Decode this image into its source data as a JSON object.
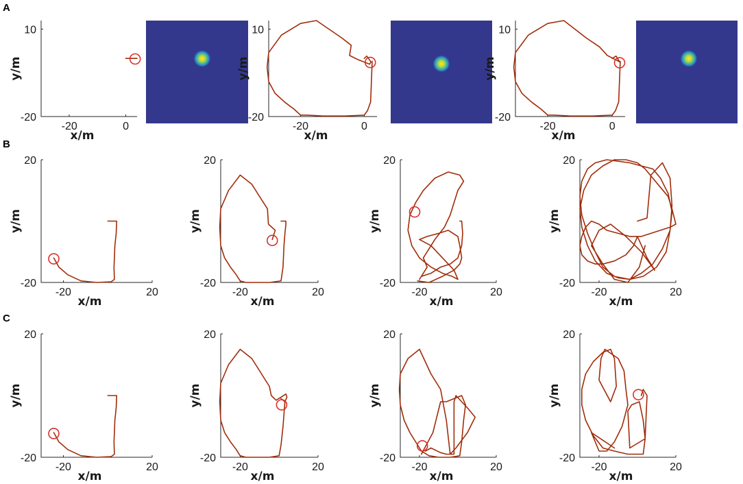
{
  "panel_labels": [
    "A",
    "B",
    "C"
  ],
  "chart_data": [
    {
      "id": "A1",
      "row": "A",
      "type": "line",
      "xlabel": "x/m",
      "ylabel": "y/m",
      "xlim": [
        -30,
        4
      ],
      "ylim": [
        -20,
        13
      ],
      "xticks": [
        -20,
        0
      ],
      "yticks": [
        10,
        -20
      ],
      "x_tick_labels": [
        "-20",
        "0"
      ],
      "y_tick_labels": [
        "10",
        "-20"
      ],
      "series": [
        {
          "x": [
            0,
            4
          ],
          "y": [
            0,
            0
          ]
        }
      ],
      "marker": {
        "x": 3.3,
        "y": -0.2
      }
    },
    {
      "id": "A1h",
      "row": "A",
      "type": "heatmap",
      "background": "#34388c",
      "blob": {
        "cx": 0.55,
        "cy": 0.37
      },
      "colormap": [
        "#34388c",
        "#2a7fcf",
        "#1fbcaa",
        "#8fd14c",
        "#ffe426"
      ]
    },
    {
      "id": "A2",
      "row": "A",
      "type": "line",
      "xlabel": "x/m",
      "ylabel": "y/m",
      "xlim": [
        -30,
        4
      ],
      "ylim": [
        -20,
        13
      ],
      "xticks": [
        -20,
        0
      ],
      "yticks": [
        10,
        -20
      ],
      "x_tick_labels": [
        "-20",
        "0"
      ],
      "y_tick_labels": [
        "10",
        "-20"
      ],
      "series": [
        {
          "x": [
            0,
            0.8,
            2.1,
            1.7,
            -1.8,
            -4.6,
            -4.1,
            -7,
            -15,
            -20,
            -26,
            -30,
            -30.5,
            -30,
            -28,
            -25,
            -22,
            -20,
            -18,
            -13,
            -6,
            0,
            1,
            2,
            2.5
          ],
          "y": [
            0,
            0.8,
            -1.2,
            -2,
            -0.5,
            1,
            4.5,
            7,
            13,
            12,
            8,
            2,
            -3,
            -8,
            -12,
            -15,
            -17.5,
            -19.5,
            -19.5,
            -19.8,
            -19.8,
            -19.5,
            -18,
            -15,
            -1
          ]
        }
      ],
      "marker": {
        "x": 1.9,
        "y": -1.4
      }
    },
    {
      "id": "A2h",
      "row": "A",
      "type": "heatmap",
      "background": "#34388c",
      "blob": {
        "cx": 0.5,
        "cy": 0.42
      },
      "colormap": [
        "#34388c",
        "#2a7fcf",
        "#1fbcaa",
        "#8fd14c",
        "#ffe426"
      ]
    },
    {
      "id": "A3",
      "row": "A",
      "type": "line",
      "xlabel": "x/m",
      "ylabel": "y/m",
      "xlim": [
        -30,
        4
      ],
      "ylim": [
        -20,
        13
      ],
      "xticks": [
        -20,
        0
      ],
      "yticks": [
        10,
        -20
      ],
      "x_tick_labels": [
        "-20",
        "0"
      ],
      "y_tick_labels": [
        "10",
        "-20"
      ],
      "series": [
        {
          "x": [
            0,
            1.2,
            2.3,
            -1.5,
            -4,
            -8,
            -15,
            -20,
            -26,
            -30,
            -30.5,
            -30,
            -28,
            -25,
            -22,
            -20,
            -18,
            -13,
            -6,
            0,
            1,
            2,
            2.5
          ],
          "y": [
            0,
            0.8,
            -1.2,
            1,
            4,
            7,
            13,
            12,
            8,
            2,
            -3,
            -8,
            -12,
            -15,
            -17.5,
            -19.5,
            -19.5,
            -19.8,
            -19.8,
            -19.5,
            -18,
            -15,
            -1
          ]
        }
      ],
      "marker": {
        "x": 2.3,
        "y": -1.5
      }
    },
    {
      "id": "A3h",
      "row": "A",
      "type": "heatmap",
      "background": "#34388c",
      "blob": {
        "cx": 0.52,
        "cy": 0.37
      },
      "colormap": [
        "#34388c",
        "#2a7fcf",
        "#1fbcaa",
        "#8fd14c",
        "#ffe426"
      ]
    },
    {
      "id": "B1",
      "row": "B",
      "type": "line",
      "xlabel": "x/m",
      "ylabel": "y/m",
      "xlim": [
        -30,
        20
      ],
      "ylim": [
        -20,
        20
      ],
      "xticks": [
        -20,
        20
      ],
      "yticks": [
        20,
        -20
      ],
      "x_tick_labels": [
        "-20",
        "20"
      ],
      "y_tick_labels": [
        "20",
        "-20"
      ],
      "series": [
        {
          "x": [
            0,
            4,
            3.8,
            3.2,
            3,
            2.8,
            3,
            1.5,
            -5,
            -12,
            -18,
            -22,
            -24.3
          ],
          "y": [
            0,
            0,
            -4,
            -8,
            -12,
            -15,
            -19,
            -19.8,
            -20,
            -19.5,
            -17.5,
            -15,
            -12
          ]
        }
      ],
      "marker": {
        "x": -24.3,
        "y": -12.3
      }
    },
    {
      "id": "B2",
      "row": "B",
      "type": "line",
      "xlabel": "x/m",
      "ylabel": "y/m",
      "xlim": [
        -30,
        20
      ],
      "ylim": [
        -20,
        20
      ],
      "xticks": [
        -20,
        20
      ],
      "yticks": [
        20,
        -20
      ],
      "x_tick_labels": [
        "-20",
        "20"
      ],
      "y_tick_labels": [
        "20",
        "-20"
      ],
      "series": [
        {
          "x": [
            -3.5,
            -2,
            -5.5,
            -6,
            -9,
            -14,
            -20,
            -26,
            -30,
            -30.5,
            -30,
            -28,
            -25,
            -22,
            -20,
            -17,
            -12,
            -5,
            1,
            2,
            2.5,
            3,
            3.5,
            3.5,
            1
          ],
          "y": [
            -6,
            -3,
            -1,
            4,
            7,
            12,
            15,
            10,
            4,
            -2,
            -8,
            -12,
            -15,
            -17.5,
            -19.5,
            -20,
            -20,
            -20,
            -19.5,
            -15,
            -8,
            -4,
            -1,
            0,
            0
          ]
        }
      ],
      "marker": {
        "x": -3.5,
        "y": -6.3
      }
    },
    {
      "id": "B3",
      "row": "B",
      "type": "line",
      "xlabel": "x/m",
      "ylabel": "y/m",
      "xlim": [
        -30,
        20
      ],
      "ylim": [
        -20,
        20
      ],
      "xticks": [
        -20,
        20
      ],
      "yticks": [
        20,
        -20
      ],
      "x_tick_labels": [
        "-20",
        "20"
      ],
      "y_tick_labels": [
        "20",
        "-20"
      ],
      "series": [
        {
          "x": [
            1,
            2,
            2.5,
            2,
            0,
            -4,
            -9,
            -14,
            -19,
            -20,
            -19,
            -16,
            -18,
            -12,
            -7,
            -4,
            -2,
            0,
            3,
            1,
            -5,
            -12,
            -18,
            -22,
            -25,
            -26,
            -24,
            -20,
            -14,
            -8,
            -3,
            0,
            -2,
            -8,
            -14,
            -20,
            -16,
            -10,
            -5,
            0,
            1,
            1.5,
            2,
            1,
            -2,
            -8,
            -15,
            -21
          ],
          "y": [
            0,
            0,
            -4,
            -8,
            -12,
            -14,
            -15,
            -17,
            -18,
            -19,
            -18,
            -15,
            -12,
            -6,
            -2,
            2,
            6,
            10,
            13,
            15,
            16,
            14,
            10,
            6,
            2,
            -3,
            -8,
            -12,
            -15,
            -17,
            -18,
            -19,
            -16,
            -12,
            -8,
            -6,
            -5,
            -4,
            -3,
            -5,
            -8,
            -10,
            -12,
            -14,
            -16,
            -18,
            -20,
            -19.5
          ]
        }
      ],
      "marker": {
        "x": -22.5,
        "y": 3
      }
    },
    {
      "id": "B4",
      "row": "B",
      "type": "line",
      "xlabel": "x/m",
      "ylabel": "y/m",
      "xlim": [
        -30,
        20
      ],
      "ylim": [
        -20,
        20
      ],
      "xticks": [
        -20,
        20
      ],
      "yticks": [
        20,
        -20
      ],
      "x_tick_labels": [
        "-20",
        "20"
      ],
      "y_tick_labels": [
        "20",
        "-20"
      ],
      "series": [
        {
          "x": [
            0,
            5,
            7,
            13,
            17,
            18,
            17,
            15,
            10,
            3,
            -4,
            -12,
            -18,
            -22,
            -26,
            -29,
            -30,
            -29,
            -26,
            -22,
            -16,
            -10,
            -4,
            2,
            8,
            12,
            16,
            18,
            17,
            13,
            8,
            2,
            -4,
            -10,
            -16,
            -22,
            -26,
            -29,
            -30,
            -28,
            -24,
            -18,
            -12,
            -6,
            0,
            4,
            8,
            12,
            16,
            18,
            20,
            17,
            12,
            7,
            2,
            -4,
            -10,
            -16,
            -20,
            -24,
            -27,
            -29,
            -30,
            -29,
            -26,
            -22,
            -18,
            -12,
            -6,
            -2,
            0,
            5,
            9,
            2,
            -6,
            -14,
            -20,
            -24,
            -18,
            -12,
            -5,
            1,
            4
          ],
          "y": [
            0,
            1,
            15,
            19,
            14,
            5,
            -3,
            -10,
            -15,
            -18,
            -19,
            -18,
            -15,
            -10,
            -4,
            2,
            8,
            13,
            17,
            19,
            20,
            19.5,
            19,
            18,
            17,
            14,
            9,
            3,
            -3,
            -9,
            -14,
            -17,
            -19,
            -18.5,
            -17,
            -13,
            -8,
            -2,
            4,
            10,
            15,
            18,
            20,
            20,
            19,
            17,
            14,
            11,
            8,
            4,
            -1,
            -2,
            -3,
            -4,
            -5,
            -5,
            -4,
            -3,
            -1,
            0,
            -2,
            -5,
            -8,
            -11,
            -13,
            -14,
            -14,
            -13,
            -11,
            -8,
            -5,
            -12,
            -16,
            -10,
            -5,
            -1,
            -3,
            -8,
            -14,
            -19,
            -20,
            -15,
            -8
          ]
        }
      ],
      "marker": null
    },
    {
      "id": "C1",
      "row": "C",
      "type": "line",
      "xlabel": "x/m",
      "ylabel": "y/m",
      "xlim": [
        -30,
        20
      ],
      "ylim": [
        -20,
        20
      ],
      "xticks": [
        -20,
        20
      ],
      "yticks": [
        20,
        -20
      ],
      "x_tick_labels": [
        "-20",
        "20"
      ],
      "y_tick_labels": [
        "20",
        "-20"
      ],
      "series": [
        {
          "x": [
            0,
            4,
            3.8,
            3.2,
            3,
            2.8,
            3,
            1.5,
            -5,
            -12,
            -18,
            -22,
            -24.3
          ],
          "y": [
            0,
            0,
            -4,
            -8,
            -12,
            -15,
            -19,
            -19.8,
            -20,
            -19.5,
            -17.5,
            -15,
            -12
          ]
        }
      ],
      "marker": {
        "x": -24.3,
        "y": -12.3
      }
    },
    {
      "id": "C2",
      "row": "C",
      "type": "line",
      "xlabel": "x/m",
      "ylabel": "y/m",
      "xlim": [
        -30,
        20
      ],
      "ylim": [
        -20,
        20
      ],
      "xticks": [
        -20,
        20
      ],
      "yticks": [
        20,
        -20
      ],
      "x_tick_labels": [
        "-20",
        "20"
      ],
      "y_tick_labels": [
        "20",
        "-20"
      ],
      "series": [
        {
          "x": [
            1,
            3,
            4,
            3.5,
            -1.5,
            -4,
            -5,
            -9,
            -14,
            -20,
            -26,
            -30,
            -30.5,
            -30,
            -28,
            -25,
            -22,
            -20,
            -17,
            -12,
            -5,
            0,
            1,
            2,
            3
          ],
          "y": [
            -1,
            -2,
            -0.5,
            0.5,
            -1.5,
            0,
            3,
            7,
            12,
            15,
            10,
            4,
            -2,
            -8,
            -12,
            -15,
            -17.5,
            -19.5,
            -20,
            -20,
            -20,
            -19.5,
            -16,
            -10,
            -2
          ]
        }
      ],
      "marker": {
        "x": 1.3,
        "y": -3
      }
    },
    {
      "id": "C3",
      "row": "C",
      "type": "line",
      "xlabel": "x/m",
      "ylabel": "y/m",
      "xlim": [
        -30,
        20
      ],
      "ylim": [
        -20,
        20
      ],
      "xticks": [
        -20,
        20
      ],
      "yticks": [
        20,
        -20
      ],
      "x_tick_labels": [
        "-20",
        "20"
      ],
      "y_tick_labels": [
        "20",
        "-20"
      ],
      "series": [
        {
          "x": [
            -17,
            -14,
            -9,
            -6,
            -2,
            -2,
            -1,
            5,
            9,
            5,
            -1,
            -4,
            -6,
            -9,
            -14,
            -20,
            -26,
            -30,
            -30.5,
            -30,
            -28,
            -25,
            -22,
            -19,
            -15,
            -10,
            -4,
            1,
            2,
            3,
            4,
            2,
            -6,
            -9,
            -13,
            -19
          ],
          "y": [
            -18,
            -17,
            -18.5,
            -19,
            -19,
            -2,
            0,
            -4,
            -7,
            -12,
            -17,
            -19,
            -8,
            2,
            7,
            15,
            12,
            7,
            2,
            -3,
            -8,
            -12,
            -15,
            -18,
            -19.5,
            -20,
            -20,
            -19.5,
            -15,
            -8,
            -3,
            0,
            -2,
            -2,
            -12,
            -19
          ]
        }
      ],
      "marker": {
        "x": -18.5,
        "y": -16.3
      }
    },
    {
      "id": "C4",
      "row": "C",
      "type": "line",
      "xlabel": "x/m",
      "ylabel": "y/m",
      "xlim": [
        -30,
        20
      ],
      "ylim": [
        -20,
        20
      ],
      "xticks": [
        -20,
        20
      ],
      "yticks": [
        20,
        -20
      ],
      "x_tick_labels": [
        "-20",
        "20"
      ],
      "y_tick_labels": [
        "20",
        "-20"
      ],
      "series": [
        {
          "x": [
            2,
            3,
            5,
            4,
            -4,
            -5,
            -3,
            1,
            3,
            4,
            3,
            -5,
            -12,
            -18,
            -23,
            -27,
            -29,
            -29,
            -27,
            -23,
            -18,
            -14,
            -12,
            -11,
            -14,
            -20,
            -19,
            -17,
            -10,
            -7,
            -6,
            -5,
            -8,
            -12,
            -16,
            -20,
            -24,
            -12
          ],
          "y": [
            0,
            2,
            0,
            -14,
            -17,
            -5,
            -3,
            -2,
            -8,
            -14,
            -19,
            -19,
            -18,
            -17,
            -13,
            -8,
            -3,
            2,
            7,
            11,
            14,
            15,
            12,
            3,
            -2,
            5,
            12,
            15,
            12,
            8,
            2,
            -3,
            -10,
            -15,
            -18,
            -18,
            -12,
            -17
          ]
        }
      ],
      "marker": {
        "x": 0.5,
        "y": 0.3
      }
    }
  ]
}
